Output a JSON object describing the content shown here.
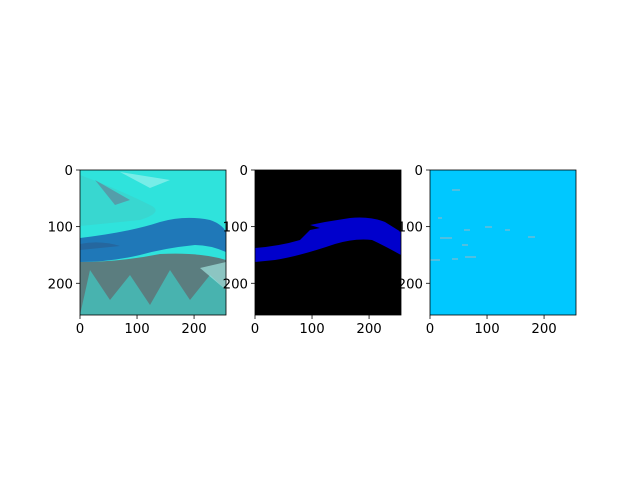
{
  "chart_data": [
    {
      "type": "image",
      "title": "",
      "xlabel": "",
      "ylabel": "",
      "xlim": [
        0,
        256
      ],
      "ylim": [
        256,
        0
      ],
      "x_ticks": [
        "0",
        "100",
        "200"
      ],
      "y_ticks": [
        "0",
        "100",
        "200"
      ],
      "content": "satellite-river-image",
      "colors": {
        "land": "#2fe3dc",
        "river": "#1f78b8",
        "dark-land": "#5b7d7f"
      }
    },
    {
      "type": "image",
      "title": "",
      "xlabel": "",
      "ylabel": "",
      "xlim": [
        0,
        256
      ],
      "ylim": [
        256,
        0
      ],
      "x_ticks": [
        "0",
        "100",
        "200"
      ],
      "y_ticks": [
        "0",
        "100",
        "200"
      ],
      "content": "river-mask",
      "colors": {
        "background": "#000000",
        "river": "#0000cc"
      }
    },
    {
      "type": "image",
      "title": "",
      "xlabel": "",
      "ylabel": "",
      "xlim": [
        0,
        256
      ],
      "ylim": [
        256,
        0
      ],
      "x_ticks": [
        "0",
        "100",
        "200"
      ],
      "y_ticks": [
        "0",
        "100",
        "200"
      ],
      "content": "predicted-mask",
      "colors": {
        "background": "#00c8ff",
        "specks": "#9fb6c0"
      }
    }
  ]
}
